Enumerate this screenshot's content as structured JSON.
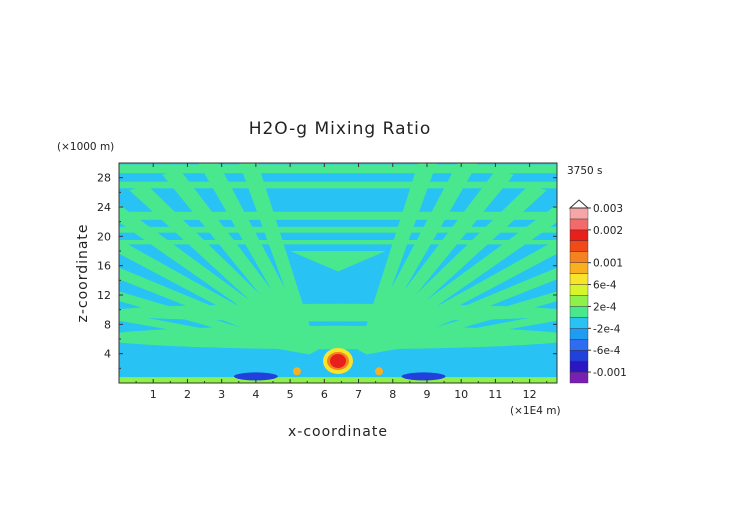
{
  "chart_data": {
    "type": "heatmap",
    "title": "H2O-g Mixing Ratio",
    "xlabel": "x-coordinate",
    "ylabel": "z-coordinate",
    "x_unit": "(×1E4 m)",
    "y_unit": "(×1000 m)",
    "time_label": "3750 s",
    "xlim": [
      0,
      12.8
    ],
    "ylim": [
      0,
      30
    ],
    "x_ticks": [
      1,
      2,
      3,
      4,
      5,
      6,
      7,
      8,
      9,
      10,
      11,
      12
    ],
    "y_ticks": [
      4,
      8,
      12,
      16,
      20,
      24,
      28
    ],
    "colorbar": {
      "labels": [
        "0.003",
        "0.002",
        "0.001",
        "6e-4",
        "2e-4",
        "-2e-4",
        "-6e-4",
        "-0.001"
      ],
      "label_values": [
        0.003,
        0.002,
        0.001,
        0.0006,
        0.0002,
        -0.0002,
        -0.0006,
        -0.001
      ],
      "levels": [
        -0.0012,
        -0.001,
        -0.0008,
        -0.0006,
        -0.0004,
        -0.0002,
        0.0,
        0.0002,
        0.0004,
        0.0006,
        0.0008,
        0.001,
        0.0012,
        0.0016,
        0.002,
        0.0024,
        0.003
      ],
      "colors": [
        "#7a1fb4",
        "#2a16c2",
        "#2240dc",
        "#2e6cf0",
        "#1f9cf2",
        "#28c2f5",
        "#49e88f",
        "#8ef04a",
        "#d6f52a",
        "#f8e42a",
        "#f8b020",
        "#f58220",
        "#f04a18",
        "#e8201c",
        "#f26a6a",
        "#f6a6a6"
      ],
      "max_extension": "#ffffff"
    },
    "field": {
      "background_value": -0.0001,
      "positive_band_value": 0.0001,
      "dominant_colors": [
        "#28c2f5",
        "#49e88f"
      ],
      "peak": {
        "x": 6.4,
        "z": 3.0,
        "value": 0.0022
      },
      "minima": [
        {
          "x": 4.0,
          "z": 0.9,
          "value": -0.0006
        },
        {
          "x": 8.9,
          "z": 0.9,
          "value": -0.0006
        }
      ]
    }
  }
}
